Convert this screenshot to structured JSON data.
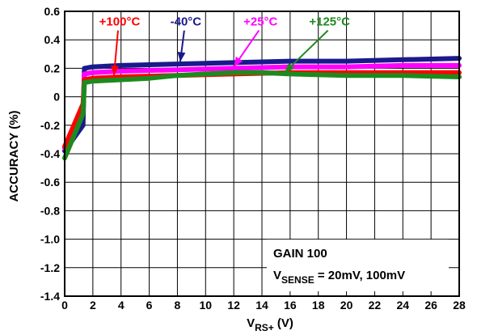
{
  "chart_data": {
    "type": "line",
    "xlabel_main": "V",
    "xlabel_sub": "RS+",
    "xlabel_unit": " (V)",
    "ylabel": "ACCURACY (%)",
    "xlim": [
      0,
      28
    ],
    "ylim": [
      -1.4,
      0.6
    ],
    "x_ticks": [
      "0",
      "2",
      "4",
      "6",
      "8",
      "10",
      "12",
      "14",
      "16",
      "18",
      "20",
      "22",
      "24",
      "26",
      "28"
    ],
    "y_ticks": [
      "0.6",
      "0.4",
      "0.2",
      "0",
      "-0.2",
      "-0.4",
      "-0.6",
      "-0.8",
      "-1.0",
      "-1.2",
      "-1.4"
    ],
    "grid": true,
    "series": [
      {
        "name": "-40°C",
        "color": "#1a1a8c",
        "x": [
          0,
          1.3,
          1.4,
          2,
          4,
          8,
          12,
          16,
          20,
          24,
          28
        ],
        "y": [
          -0.38,
          -0.2,
          0.2,
          0.21,
          0.22,
          0.23,
          0.24,
          0.25,
          0.25,
          0.26,
          0.27
        ]
      },
      {
        "name": "+25°C",
        "color": "#ff00ff",
        "x": [
          0,
          1.3,
          1.4,
          2,
          4,
          8,
          12,
          16,
          20,
          24,
          28
        ],
        "y": [
          -0.36,
          -0.1,
          0.16,
          0.17,
          0.18,
          0.19,
          0.2,
          0.21,
          0.21,
          0.22,
          0.22
        ]
      },
      {
        "name": "+100°C",
        "color": "#ff0000",
        "x": [
          0,
          1.3,
          1.4,
          2,
          4,
          8,
          12,
          16,
          20,
          24,
          28
        ],
        "y": [
          -0.35,
          -0.05,
          0.12,
          0.13,
          0.14,
          0.15,
          0.16,
          0.17,
          0.17,
          0.17,
          0.17
        ]
      },
      {
        "name": "+125°C",
        "color": "#1e8a1e",
        "x": [
          0,
          1.3,
          1.4,
          2,
          4,
          6,
          8,
          10,
          12,
          14,
          16,
          20,
          24,
          28
        ],
        "y": [
          -0.43,
          -0.12,
          0.1,
          0.11,
          0.12,
          0.13,
          0.15,
          0.16,
          0.17,
          0.17,
          0.16,
          0.15,
          0.15,
          0.14
        ]
      }
    ],
    "label_positions": [
      {
        "series": "+100°C",
        "text_x": 3.9,
        "text_y": 0.5,
        "arrow_to_x": 3.5,
        "arrow_to_y": 0.15
      },
      {
        "series": "-40°C",
        "text_x": 8.6,
        "text_y": 0.5,
        "arrow_to_x": 8.2,
        "arrow_to_y": 0.245
      },
      {
        "series": "+25°C",
        "text_x": 13.9,
        "text_y": 0.5,
        "arrow_to_x": 12,
        "arrow_to_y": 0.21
      },
      {
        "series": "+125°C",
        "text_x": 18.8,
        "text_y": 0.5,
        "arrow_to_x": 15.6,
        "arrow_to_y": 0.17
      }
    ],
    "annotation": {
      "line1": "GAIN 100",
      "line2_main": "V",
      "line2_sub": "SENSE",
      "line2_rest": " = 20mV, 100mV"
    }
  }
}
